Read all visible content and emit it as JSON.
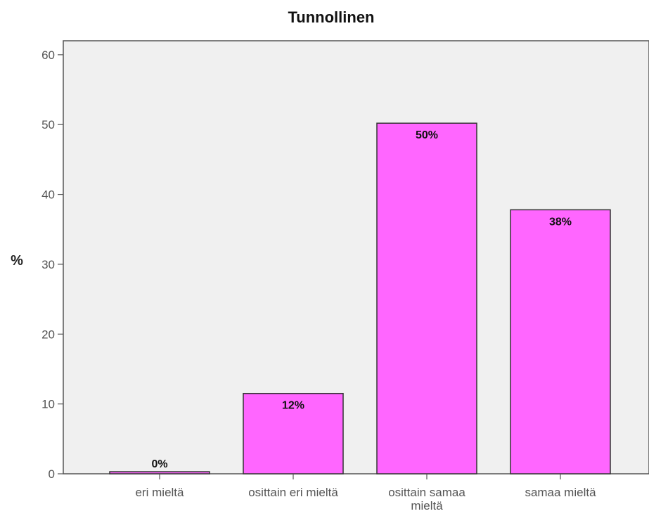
{
  "chart_data": {
    "type": "bar",
    "title": "Tunnollinen",
    "ylabel": "%",
    "xlabel": "",
    "categories": [
      "eri mieltä",
      "osittain eri mieltä",
      "osittain samaa mieltä",
      "samaa mieltä"
    ],
    "category_lines": [
      [
        "eri mieltä"
      ],
      [
        "osittain eri mieltä"
      ],
      [
        "osittain samaa",
        "mieltä"
      ],
      [
        "samaa mieltä"
      ]
    ],
    "values": [
      0.3,
      11.5,
      50.2,
      37.8
    ],
    "data_labels": [
      "0%",
      "12%",
      "50%",
      "38%"
    ],
    "ylim": [
      0,
      62
    ],
    "yticks": [
      0,
      10,
      20,
      30,
      40,
      50,
      60
    ],
    "grid": false,
    "colors": {
      "bar": "#ff66ff",
      "bar_edge": "#333333",
      "plot_bg": "#f0f0f0",
      "axis": "#555555"
    }
  }
}
